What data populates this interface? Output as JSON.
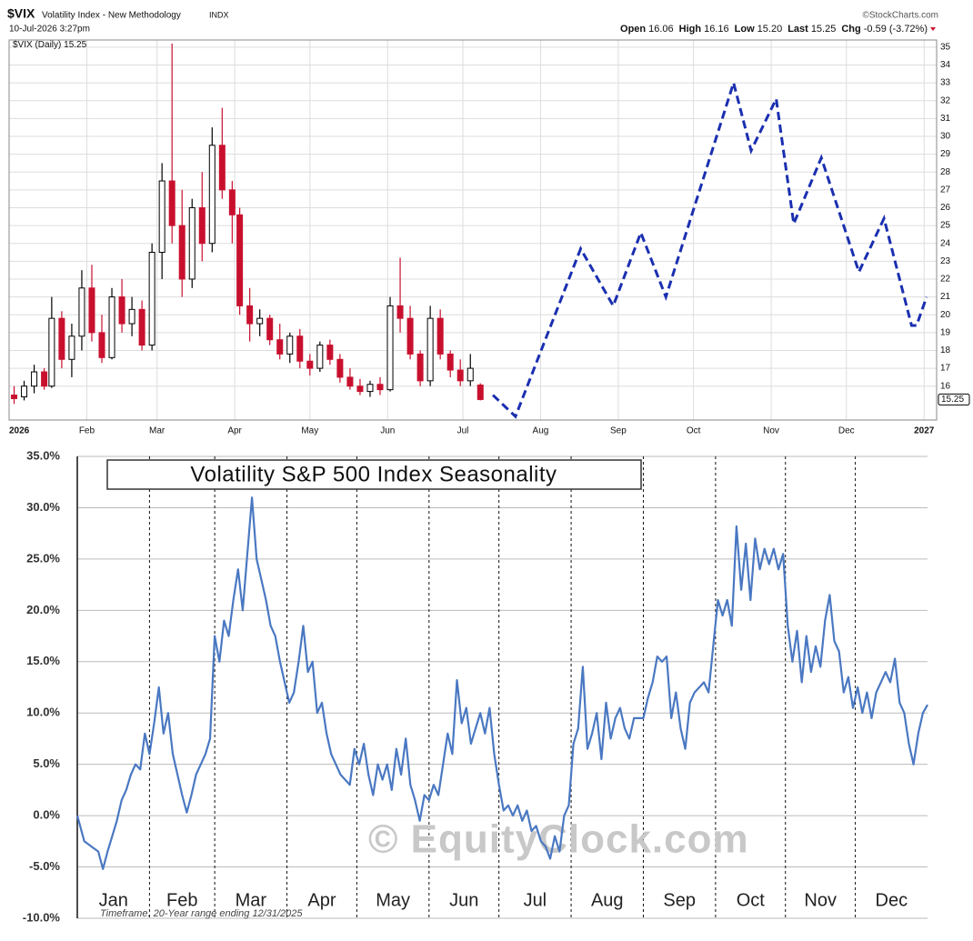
{
  "chart_data": [
    {
      "type": "candlestick",
      "symbol": "$VIX",
      "name": "Volatility Index - New Methodology",
      "exchange": "INDX",
      "timestamp": "10-Jul-2026 3:27pm",
      "source": "©StockCharts.com",
      "quote": [
        {
          "label": "Open",
          "value": 16.06
        },
        {
          "label": "High",
          "value": 16.16
        },
        {
          "label": "Low",
          "value": 15.2,
          "value_label": "15.20"
        },
        {
          "label": "Last",
          "value": 15.25
        }
      ],
      "change": {
        "label": "Chg",
        "value": -0.59,
        "percent": -3.72,
        "percent_label": "(-3.72%)"
      },
      "legend": "$VIX (Daily)",
      "last": 15.25,
      "up_color": "#000000",
      "down_color": "#c8102e",
      "x": [
        2,
        6,
        10,
        14,
        17,
        21,
        25,
        29,
        33,
        37,
        41,
        45,
        49,
        53,
        57,
        61,
        65,
        69,
        73,
        77,
        81,
        85,
        89,
        92,
        96,
        100,
        104,
        108,
        112,
        116,
        120,
        124,
        128,
        132,
        136,
        140,
        144,
        148,
        152,
        156,
        160,
        164,
        168,
        172,
        176,
        180,
        184,
        188
      ],
      "open": [
        15.5,
        15.4,
        16.0,
        16.8,
        16.0,
        19.8,
        17.5,
        18.8,
        21.5,
        19.0,
        17.6,
        21.0,
        19.5,
        20.3,
        18.3,
        23.5,
        27.5,
        25.0,
        22.0,
        26.0,
        24.0,
        29.5,
        27.0,
        25.6,
        20.5,
        19.5,
        19.8,
        18.6,
        17.8,
        18.8,
        17.4,
        17.0,
        18.3,
        17.5,
        16.5,
        16.0,
        15.7,
        16.1,
        15.8,
        20.5,
        19.8,
        17.8,
        16.3,
        19.8,
        17.8,
        16.9,
        16.3,
        16.06
      ],
      "high": [
        16.0,
        16.3,
        17.2,
        17.0,
        21.0,
        20.2,
        19.5,
        22.5,
        22.8,
        20.0,
        21.5,
        22.0,
        21.0,
        20.8,
        24.0,
        28.5,
        35.2,
        27.0,
        26.5,
        28.0,
        30.5,
        31.6,
        27.5,
        26.0,
        21.5,
        20.3,
        20.0,
        19.5,
        19.0,
        19.2,
        17.8,
        18.5,
        18.6,
        17.8,
        17.0,
        16.4,
        16.3,
        16.5,
        21.0,
        23.2,
        20.5,
        18.0,
        20.5,
        20.3,
        18.0,
        17.5,
        17.8,
        16.16
      ],
      "low": [
        15.0,
        15.2,
        15.6,
        15.8,
        15.9,
        17.0,
        16.5,
        18.0,
        18.5,
        17.3,
        17.5,
        19.0,
        18.8,
        18.0,
        18.0,
        22.0,
        24.0,
        21.0,
        21.5,
        23.0,
        23.5,
        26.5,
        24.0,
        20.0,
        18.5,
        18.8,
        18.3,
        17.5,
        17.3,
        17.0,
        16.6,
        16.8,
        17.2,
        16.2,
        15.8,
        15.5,
        15.4,
        15.5,
        15.7,
        19.0,
        17.5,
        16.0,
        16.0,
        17.5,
        16.5,
        16.0,
        16.0,
        15.2
      ],
      "close": [
        15.3,
        16.0,
        16.8,
        16.0,
        19.8,
        17.5,
        18.8,
        21.5,
        19.0,
        17.6,
        21.0,
        19.5,
        20.3,
        18.3,
        23.5,
        27.5,
        25.0,
        22.0,
        26.0,
        24.0,
        29.5,
        27.0,
        25.6,
        20.5,
        19.5,
        19.8,
        18.6,
        17.8,
        18.8,
        17.4,
        17.0,
        18.3,
        17.5,
        16.5,
        16.0,
        15.7,
        16.1,
        15.8,
        20.5,
        19.8,
        17.8,
        16.3,
        19.8,
        17.8,
        16.9,
        16.3,
        17.0,
        15.25
      ],
      "projection": {
        "color": "#1a2fb0",
        "x": [
          193,
          202,
          228,
          241,
          252,
          262,
          289,
          296,
          306,
          313,
          324,
          339,
          349,
          360,
          362,
          366
        ],
        "values": [
          15.5,
          14.3,
          23.7,
          20.5,
          24.6,
          21.0,
          33.0,
          29.2,
          32.1,
          25.1,
          28.8,
          22.4,
          25.4,
          19.4,
          19.4,
          21.0
        ]
      },
      "xlim": [
        0,
        370
      ],
      "ylim": [
        14.1,
        35.4
      ],
      "xticks": [
        {
          "value": 0,
          "label": "2026"
        },
        {
          "value": 31,
          "label": "Feb"
        },
        {
          "value": 59,
          "label": "Mar"
        },
        {
          "value": 90,
          "label": "Apr"
        },
        {
          "value": 120,
          "label": "May"
        },
        {
          "value": 151,
          "label": "Jun"
        },
        {
          "value": 181,
          "label": "Jul"
        },
        {
          "value": 212,
          "label": "Aug"
        },
        {
          "value": 243,
          "label": "Sep"
        },
        {
          "value": 273,
          "label": "Oct"
        },
        {
          "value": 304,
          "label": "Nov"
        },
        {
          "value": 334,
          "label": "Dec"
        },
        {
          "value": 365,
          "label": "2027"
        }
      ],
      "yticks": [
        16,
        17,
        18,
        19,
        20,
        21,
        22,
        23,
        24,
        25,
        26,
        27,
        28,
        29,
        30,
        31,
        32,
        33,
        34,
        35
      ],
      "grid": true
    },
    {
      "type": "line",
      "title": "Volatility S&P 500 Index Seasonality",
      "watermark": "© EquityClock.com",
      "note": "Timeframe: 20-Year range ending 12/31/2025",
      "months": [
        "Jan",
        "Feb",
        "Mar",
        "Apr",
        "May",
        "Jun",
        "Jul",
        "Aug",
        "Sep",
        "Oct",
        "Nov",
        "Dec"
      ],
      "month_starts": [
        0,
        31,
        59,
        90,
        120,
        151,
        181,
        212,
        243,
        274,
        304,
        334
      ],
      "xlim": [
        0,
        365
      ],
      "ylim": [
        -10,
        35
      ],
      "yticks": [
        {
          "value": -10,
          "label": "-10.0%"
        },
        {
          "value": -5,
          "label": "-5.0%"
        },
        {
          "value": 0,
          "label": "0.0%"
        },
        {
          "value": 5,
          "label": "5.0%"
        },
        {
          "value": 10,
          "label": "10.0%"
        },
        {
          "value": 15,
          "label": "15.0%"
        },
        {
          "value": 20,
          "label": "20.0%"
        },
        {
          "value": 25,
          "label": "25.0%"
        },
        {
          "value": 30,
          "label": "30.0%"
        },
        {
          "value": 35,
          "label": "35.0%"
        }
      ],
      "grid": true,
      "series": [
        {
          "color": "#4a78c2",
          "x": [
            0,
            3,
            6,
            9,
            11,
            13,
            15,
            17,
            19,
            21,
            23,
            25,
            27,
            29,
            31,
            33,
            35,
            37,
            39,
            41,
            43,
            45,
            47,
            49,
            51,
            53,
            55,
            57,
            59,
            61,
            63,
            65,
            67,
            69,
            71,
            73,
            75,
            77,
            79,
            81,
            83,
            85,
            87,
            89,
            91,
            93,
            95,
            97,
            99,
            101,
            103,
            105,
            107,
            109,
            111,
            113,
            115,
            117,
            119,
            121,
            123,
            125,
            127,
            129,
            131,
            133,
            135,
            137,
            139,
            141,
            143,
            145,
            147,
            149,
            151,
            153,
            155,
            157,
            159,
            161,
            163,
            165,
            167,
            169,
            171,
            173,
            175,
            177,
            179,
            181,
            183,
            185,
            187,
            189,
            191,
            193,
            195,
            197,
            199,
            201,
            203,
            205,
            207,
            209,
            211,
            213,
            215,
            217,
            219,
            221,
            223,
            225,
            227,
            229,
            231,
            233,
            235,
            237,
            239,
            241,
            243,
            245,
            247,
            249,
            251,
            253,
            255,
            257,
            259,
            261,
            263,
            265,
            267,
            269,
            271,
            273,
            275,
            277,
            279,
            281,
            283,
            285,
            287,
            289,
            291,
            293,
            295,
            297,
            299,
            301,
            303,
            305,
            307,
            309,
            311,
            313,
            315,
            317,
            319,
            321,
            323,
            325,
            327,
            329,
            331,
            333,
            335,
            337,
            339,
            341,
            343,
            345,
            347,
            349,
            351,
            353,
            355,
            357,
            359,
            361,
            363,
            365
          ],
          "values": [
            0,
            -2.5,
            -3,
            -3.5,
            -5.2,
            -3.5,
            -2,
            -0.5,
            1.5,
            2.5,
            4,
            5,
            4.5,
            8,
            6,
            9,
            12.5,
            8,
            10,
            6,
            4,
            2,
            0.3,
            2,
            4,
            5,
            6,
            7.5,
            17.5,
            15,
            19,
            17.5,
            21,
            24,
            20,
            25.5,
            31,
            25,
            23,
            21,
            18.5,
            17.5,
            15,
            13,
            11,
            12,
            15,
            18.5,
            14,
            15,
            10,
            11,
            8,
            6,
            5,
            4,
            3.5,
            3,
            6.5,
            5,
            7,
            4,
            2,
            5,
            3.5,
            5,
            2.5,
            6.5,
            4,
            7.5,
            3,
            1.5,
            -0.5,
            2,
            1.5,
            3,
            2,
            5,
            8,
            6,
            13.2,
            9,
            10.5,
            7,
            8.5,
            10,
            8,
            10.5,
            6,
            3,
            0.5,
            1,
            0,
            1,
            -0.5,
            0.5,
            -1.5,
            -1,
            -2.5,
            -3,
            -4.2,
            -2,
            -3.5,
            0,
            1,
            7,
            8.5,
            14.5,
            6.5,
            8,
            10,
            5.5,
            11,
            7.5,
            9.5,
            10.5,
            8.5,
            7.5,
            9.5,
            9.5,
            9.5,
            11.5,
            13,
            15.5,
            15,
            15.5,
            9.5,
            12,
            8.5,
            6.5,
            11,
            12,
            12.5,
            13,
            12,
            16.5,
            21,
            19.5,
            21,
            18.5,
            28.2,
            22,
            26.5,
            21,
            27,
            24,
            26,
            24.5,
            26,
            24,
            25.5,
            18.5,
            15,
            18,
            13,
            17.5,
            14,
            16.5,
            14.5,
            19,
            21.5,
            17,
            16,
            12,
            13.5,
            10.5,
            12.5,
            10,
            12,
            9.5,
            12,
            13,
            14,
            13,
            15.3,
            11,
            10,
            7,
            5,
            8,
            10,
            10.8
          ]
        }
      ]
    }
  ]
}
